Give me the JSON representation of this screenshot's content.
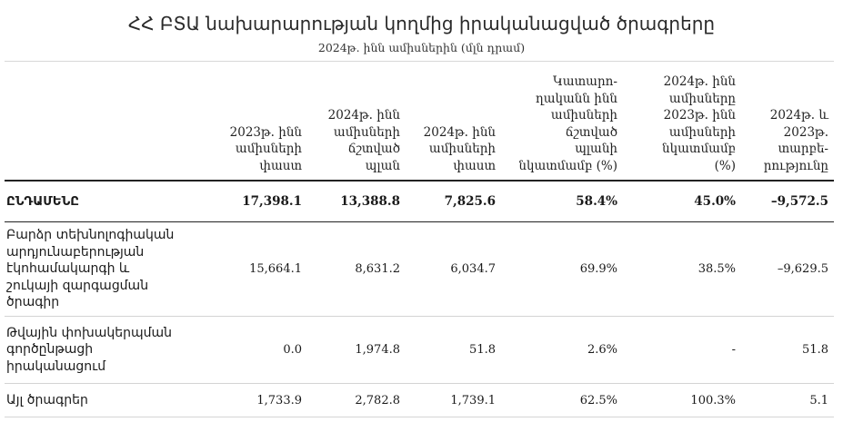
{
  "title": "ՀՀ ԲՏԱ նախարարության կողմից իրականացված ծրագրերը",
  "subtitle": "2024թ. ինն ամիսներին (մլն դրամ)",
  "table": {
    "columns": [
      "",
      "2023թ. ինն ամիսների փաստ",
      "2024թ. ինն ամիսների ճշտված պլան",
      "2024թ. ինն ամիսների փաստ",
      "Կատարո-ղականն ինն ամիսների ճշտված պլանի նկատմամբ (%)",
      "2024թ. ինն ամիսները 2023թ. ինն ամիսների նկատմամբ (%)",
      "2024թ. և 2023թ. տարբե-րությունը"
    ],
    "header_lines": [
      [],
      [
        "2023թ. ինն",
        "ամիսների",
        "փաստ"
      ],
      [
        "2024թ. ինն",
        "ամիսների",
        "ճշտված",
        "պլան"
      ],
      [
        "2024թ. ինն",
        "ամիսների",
        "փաստ"
      ],
      [
        "Կատարո-",
        "ղականն ինն",
        "ամիսների",
        "ճշտված",
        "պլանի",
        "նկատմամբ (%)"
      ],
      [
        "2024թ. ինն",
        "ամիսները",
        "2023թ. ինն",
        "ամիսների",
        "նկատմամբ",
        "(%)"
      ],
      [
        "2024թ. և",
        "2023թ.",
        "տարբե-",
        "րությունը"
      ]
    ],
    "rows": [
      {
        "label": "ԸՆԴԱՄԵՆԸ",
        "label_lines": [
          "ԸՆԴԱՄԵՆԸ"
        ],
        "values": [
          "17,398.1",
          "13,388.8",
          "7,825.6",
          "58.4%",
          "45.0%",
          "–9,572.5"
        ]
      },
      {
        "label": "Բարձր տեխնոլոգիական արդյունաբերության էկոհամակարգի և շուկայի զարգացման ծրագիր",
        "label_lines": [
          "Բարձր տեխնոլոգիական",
          "արդյունաբերության",
          "էկոհամակարգի և",
          "շուկայի զարգացման",
          "ծրագիր"
        ],
        "values": [
          "15,664.1",
          "8,631.2",
          "6,034.7",
          "69.9%",
          "38.5%",
          "–9,629.5"
        ]
      },
      {
        "label": "Թվային փոխակերպման գործընթացի իրականացում",
        "label_lines": [
          "Թվային փոխակերպման",
          "գործընթացի",
          "իրականացում"
        ],
        "values": [
          "0.0",
          "1,974.8",
          "51.8",
          "2.6%",
          "-",
          "51.8"
        ]
      },
      {
        "label": "Այլ ծրագրեր",
        "label_lines": [
          "Այլ ծրագրեր"
        ],
        "values": [
          "1,733.9",
          "2,782.8",
          "1,739.1",
          "62.5%",
          "100.3%",
          "5.1"
        ]
      }
    ]
  }
}
